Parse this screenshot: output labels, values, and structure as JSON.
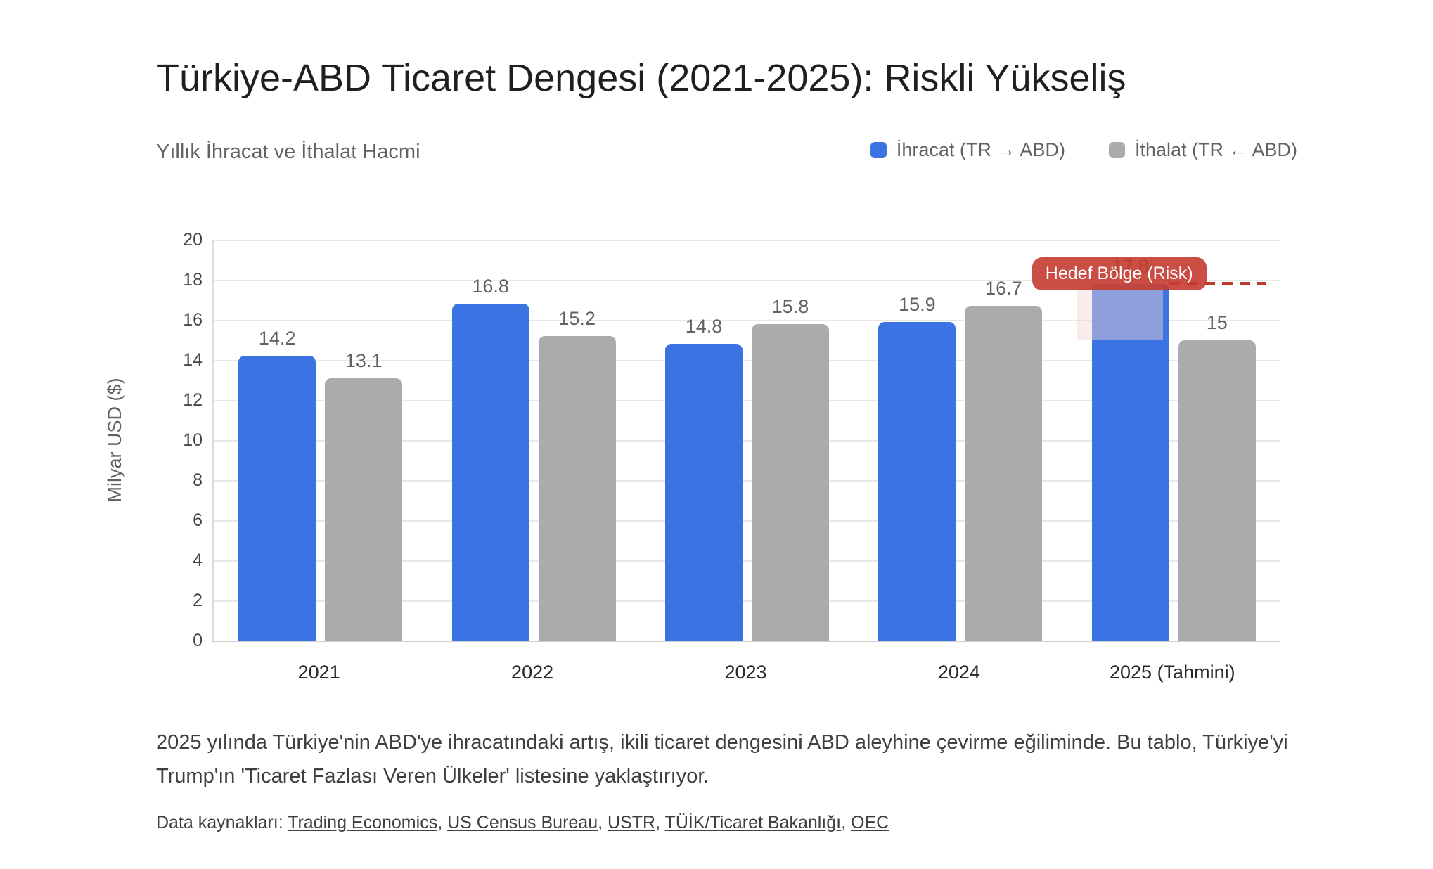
{
  "page": {
    "title": "Türkiye-ABD Ticaret Dengesi (2021-2025): Riskli Yükseliş",
    "subtitle": "Yıllık İhracat ve İthalat Hacmi",
    "description": "2025 yılında Türkiye'nin ABD'ye ihracatındaki artış, ikili ticaret dengesini ABD aleyhine çevirme eğiliminde. Bu tablo, Türkiye'yi Trump'ın 'Ticaret Fazlası Veren Ülkeler' listesine yaklaştırıyor.",
    "sources_label": "Data kaynakları:",
    "sources": [
      "Trading Economics",
      "US Census Bureau",
      "USTR",
      "TÜİK/Ticaret Bakanlığı",
      "OEC"
    ]
  },
  "chart_data": {
    "type": "bar",
    "title": "Yıllık İhracat ve İthalat Hacmi",
    "categories": [
      "2021",
      "2022",
      "2023",
      "2024",
      "2025 (Tahmini)"
    ],
    "series": [
      {
        "name": "İhracat (TR → ABD)",
        "color": "#3b73e3",
        "values": [
          14.2,
          16.8,
          14.8,
          15.9,
          17.8
        ]
      },
      {
        "name": "İthalat (TR ← ABD)",
        "color": "#ababab",
        "values": [
          13.1,
          15.2,
          15.8,
          16.7,
          15
        ]
      }
    ],
    "xlabel": "",
    "ylabel": "Milyar USD ($)",
    "ylim": [
      0,
      20
    ],
    "ytick_step": 2,
    "grid": true,
    "legend_position": "top-right",
    "annotations": {
      "badge_label": "Hedef Bölge (Risk)",
      "badge_color": "rgba(196,59,48,0.9)",
      "target_line_value": 17.8,
      "target_line_color": "#c03a2e",
      "highlight_band": {
        "category": "2025 (Tahmini)",
        "from": 15,
        "to": 17.8,
        "color": "rgba(242,215,211,0.45)"
      }
    }
  }
}
